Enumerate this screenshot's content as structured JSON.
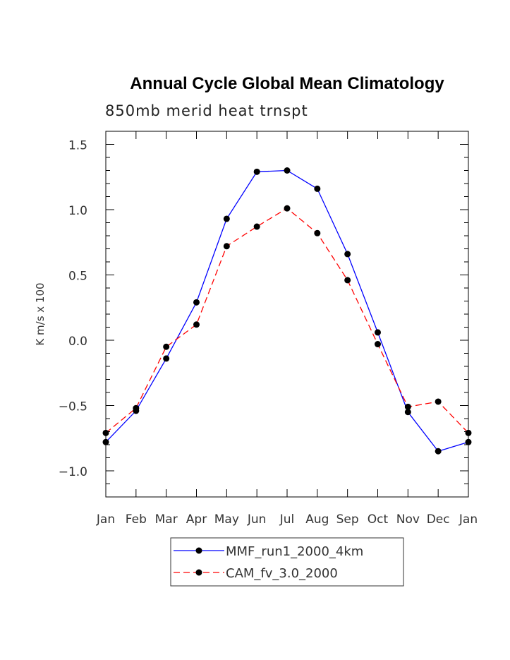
{
  "chart_data": {
    "type": "line",
    "title": "Annual Cycle Global Mean Climatology",
    "subtitle": "850mb merid heat trnspt",
    "xlabel": "",
    "ylabel": "K m/s x 100",
    "categories": [
      "Jan",
      "Feb",
      "Mar",
      "Apr",
      "May",
      "Jun",
      "Jul",
      "Aug",
      "Sep",
      "Oct",
      "Nov",
      "Dec",
      "Jan"
    ],
    "ylim": [
      -1.2,
      1.6
    ],
    "yticks": [
      -1.0,
      -0.5,
      0.0,
      0.5,
      1.0,
      1.5
    ],
    "ytick_labels": [
      "−1.0",
      "−0.5",
      "0.0",
      "0.5",
      "1.0",
      "1.5"
    ],
    "grid": false,
    "legend_position": "bottom",
    "series": [
      {
        "name": "MMF_run1_2000_4km",
        "color": "#0000ff",
        "style": "solid",
        "values": [
          -0.78,
          -0.54,
          -0.14,
          0.29,
          0.93,
          1.29,
          1.3,
          1.16,
          0.66,
          0.06,
          -0.55,
          -0.85,
          -0.78
        ]
      },
      {
        "name": "CAM_fv_3.0_2000",
        "color": "#ff0000",
        "style": "dashed",
        "values": [
          -0.71,
          -0.52,
          -0.05,
          0.12,
          0.72,
          0.87,
          1.01,
          0.82,
          0.46,
          -0.03,
          -0.51,
          -0.47,
          -0.71
        ]
      }
    ]
  }
}
